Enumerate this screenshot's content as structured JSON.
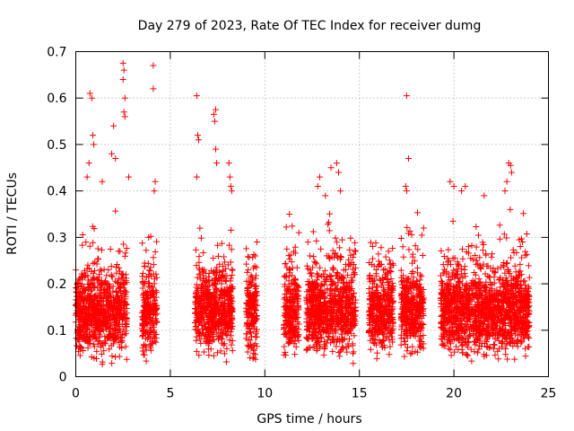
{
  "chart_data": {
    "type": "scatter",
    "title": "Day 279 of 2023, Rate Of TEC Index for receiver dumg",
    "xlabel": "GPS time / hours",
    "ylabel": "ROTI / TECUs",
    "xlim": [
      0,
      25
    ],
    "ylim": [
      0,
      0.7
    ],
    "xticks": [
      0,
      5,
      10,
      15,
      20,
      25
    ],
    "yticks": [
      0,
      0.1,
      0.2,
      0.3,
      0.4,
      0.5,
      0.6,
      0.7
    ],
    "grid": true,
    "marker": "+",
    "color": "#ff0000",
    "series": [
      {
        "name": "ROTI",
        "description_of_density": "dense clusters of points in intervals",
        "intervals_hours": [
          [
            0.0,
            2.7
          ],
          [
            3.5,
            4.3
          ],
          [
            6.3,
            8.3
          ],
          [
            9.0,
            9.6
          ],
          [
            11.0,
            11.8
          ],
          [
            12.2,
            14.8
          ],
          [
            15.5,
            16.8
          ],
          [
            17.2,
            18.4
          ],
          [
            19.3,
            24.0
          ]
        ],
        "points": [
          [
            0.75,
            0.61
          ],
          [
            0.85,
            0.6
          ],
          [
            2.5,
            0.675
          ],
          [
            2.55,
            0.66
          ],
          [
            2.5,
            0.64
          ],
          [
            2.6,
            0.6
          ],
          [
            2.55,
            0.57
          ],
          [
            2.6,
            0.56
          ],
          [
            4.1,
            0.67
          ],
          [
            4.1,
            0.62
          ],
          [
            4.2,
            0.42
          ],
          [
            4.15,
            0.4
          ],
          [
            3.85,
            0.3
          ],
          [
            6.4,
            0.605
          ],
          [
            6.45,
            0.52
          ],
          [
            6.5,
            0.51
          ],
          [
            7.4,
            0.575
          ],
          [
            7.3,
            0.565
          ],
          [
            7.35,
            0.55
          ],
          [
            7.4,
            0.49
          ],
          [
            7.45,
            0.46
          ],
          [
            6.4,
            0.43
          ],
          [
            2.0,
            0.54
          ],
          [
            1.9,
            0.48
          ],
          [
            2.1,
            0.47
          ],
          [
            0.9,
            0.52
          ],
          [
            0.95,
            0.5
          ],
          [
            0.7,
            0.46
          ],
          [
            0.6,
            0.43
          ],
          [
            1.4,
            0.42
          ],
          [
            2.8,
            0.43
          ],
          [
            8.1,
            0.46
          ],
          [
            8.15,
            0.43
          ],
          [
            8.2,
            0.41
          ],
          [
            8.25,
            0.4
          ],
          [
            17.5,
            0.605
          ],
          [
            17.6,
            0.47
          ],
          [
            17.45,
            0.41
          ],
          [
            17.5,
            0.4
          ],
          [
            22.9,
            0.46
          ],
          [
            23.0,
            0.455
          ],
          [
            23.05,
            0.44
          ],
          [
            22.8,
            0.42
          ],
          [
            22.7,
            0.4
          ],
          [
            19.8,
            0.42
          ],
          [
            20.0,
            0.41
          ],
          [
            20.6,
            0.41
          ],
          [
            20.4,
            0.4
          ],
          [
            21.6,
            0.39
          ],
          [
            18.4,
            0.32
          ],
          [
            13.5,
            0.45
          ],
          [
            13.8,
            0.46
          ],
          [
            13.9,
            0.44
          ],
          [
            12.9,
            0.43
          ],
          [
            12.8,
            0.41
          ],
          [
            13.2,
            0.39
          ],
          [
            14.0,
            0.4
          ],
          [
            11.3,
            0.35
          ],
          [
            11.8,
            0.31
          ],
          [
            14.8,
            0.27
          ],
          [
            9.5,
            0.26
          ],
          [
            16.8,
            0.24
          ],
          [
            15.9,
            0.23
          ]
        ]
      }
    ]
  }
}
